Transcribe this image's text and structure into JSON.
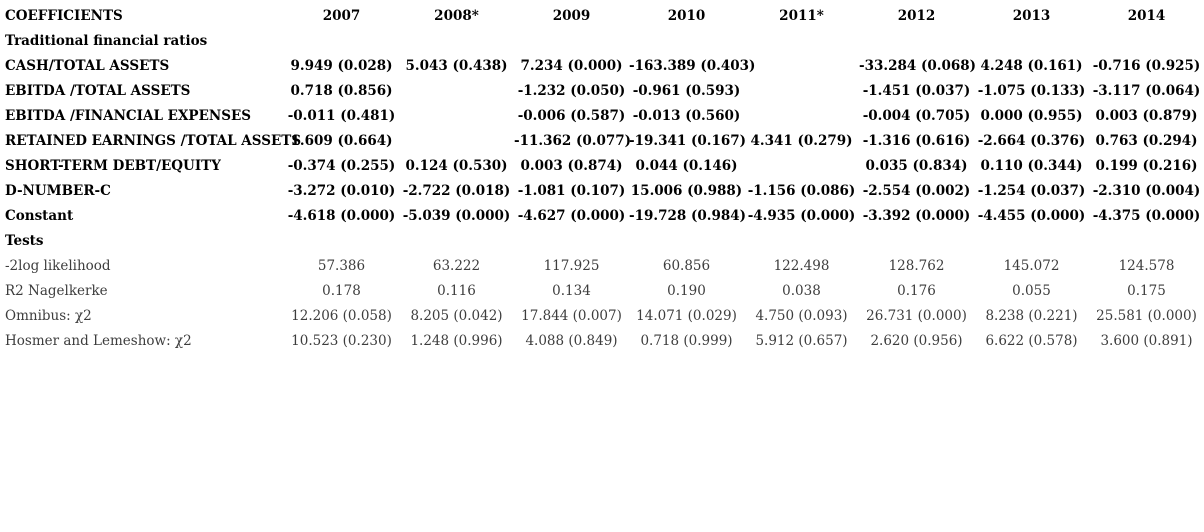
{
  "table": {
    "header": {
      "label": "COEFFICIENTS",
      "years": [
        "2007",
        "2008*",
        "2009",
        "2010",
        "2011*",
        "2012",
        "2013",
        "2014"
      ]
    },
    "sections": [
      {
        "title": "Traditional financial ratios",
        "style": "coef",
        "rows": [
          {
            "label": "CASH/TOTAL ASSETS",
            "values": [
              "9.949 (0.028)",
              "5.043 (0.438)",
              "7.234 (0.000)",
              "-163.389 (0.403)",
              "",
              "-33.284 (0.068)",
              "4.248 (0.161)",
              "-0.716 (0.925)"
            ]
          },
          {
            "label": "EBITDA /TOTAL ASSETS",
            "values": [
              "0.718 (0.856)",
              "",
              "-1.232 (0.050)",
              "-0.961 (0.593)",
              "",
              "-1.451 (0.037)",
              "-1.075 (0.133)",
              "-3.117 (0.064)"
            ]
          },
          {
            "label": "EBITDA /FINANCIAL EXPENSES",
            "values": [
              "-0.011 (0.481)",
              "",
              "-0.006 (0.587)",
              "-0.013 (0.560)",
              "",
              "-0.004 (0.705)",
              "0.000 (0.955)",
              "0.003 (0.879)"
            ]
          },
          {
            "label": "RETAINED EARNINGS /TOTAL ASSETS",
            "values": [
              "1.609 (0.664)",
              "",
              "-11.362 (0.077)",
              "-19.341 (0.167)",
              "4.341 (0.279)",
              "-1.316 (0.616)",
              "-2.664 (0.376)",
              "0.763 (0.294)"
            ]
          },
          {
            "label": "SHORT-TERM DEBT/EQUITY",
            "values": [
              "-0.374 (0.255)",
              "0.124 (0.530)",
              "0.003 (0.874)",
              "0.044 (0.146)",
              "",
              "0.035 (0.834)",
              "0.110 (0.344)",
              "0.199 (0.216)"
            ]
          },
          {
            "label": "D-NUMBER-C",
            "values": [
              "-3.272 (0.010)",
              "-2.722 (0.018)",
              "-1.081 (0.107)",
              "15.006 (0.988)",
              "-1.156 (0.086)",
              "-2.554 (0.002)",
              "-1.254 (0.037)",
              "-2.310 (0.004)"
            ]
          },
          {
            "label": "Constant",
            "values": [
              "-4.618 (0.000)",
              "-5.039 (0.000)",
              "-4.627 (0.000)",
              "-19.728 (0.984)",
              "-4.935 (0.000)",
              "-3.392 (0.000)",
              "-4.455 (0.000)",
              "-4.375 (0.000)"
            ]
          }
        ]
      },
      {
        "title": "Tests",
        "style": "tests",
        "rows": [
          {
            "label": "-2log likelihood",
            "values": [
              "57.386",
              "63.222",
              "117.925",
              "60.856",
              "122.498",
              "128.762",
              "145.072",
              "124.578"
            ]
          },
          {
            "label": "R2 Nagelkerke",
            "values": [
              "0.178",
              "0.116",
              "0.134",
              "0.190",
              "0.038",
              "0.176",
              "0.055",
              "0.175"
            ]
          },
          {
            "label": "Omnibus: χ2",
            "values": [
              "12.206 (0.058)",
              "8.205 (0.042)",
              "17.844 (0.007)",
              "14.071 (0.029)",
              "4.750 (0.093)",
              "26.731 (0.000)",
              "8.238 (0.221)",
              "25.581 (0.000)"
            ]
          },
          {
            "label": "Hosmer and Lemeshow: χ2",
            "values": [
              "10.523 (0.230)",
              "1.248 (0.996)",
              "4.088 (0.849)",
              "0.718 (0.999)",
              "5.912 (0.657)",
              "2.620 (0.956)",
              "6.622 (0.578)",
              "3.600 (0.891)"
            ]
          }
        ]
      }
    ]
  }
}
